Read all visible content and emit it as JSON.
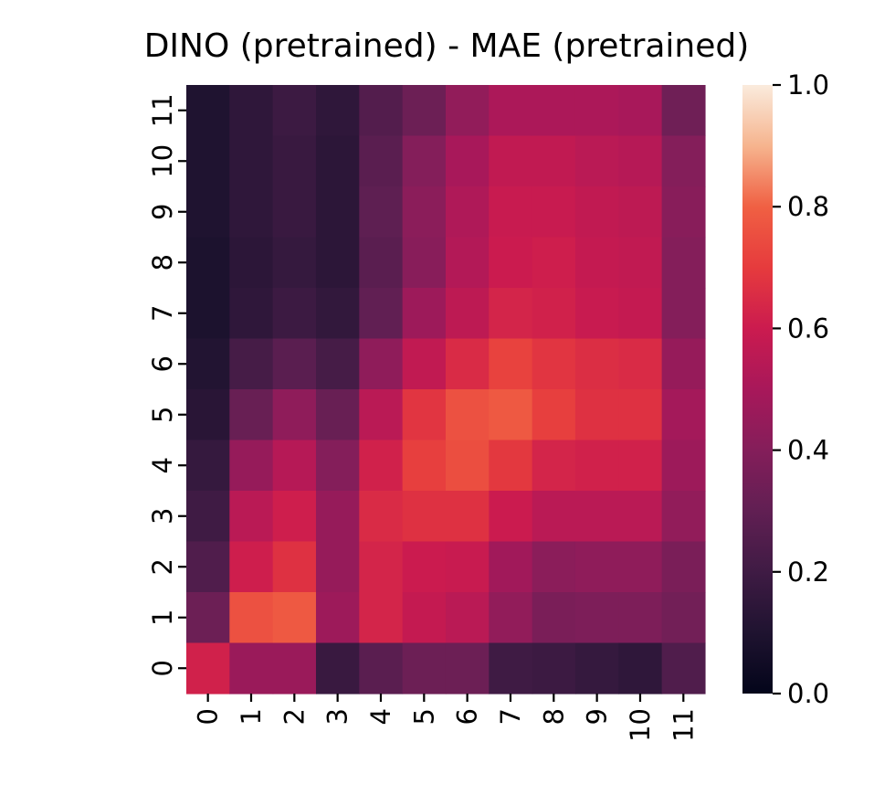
{
  "chart_data": {
    "type": "heatmap",
    "title": "DINO (pretrained) - MAE (pretrained)",
    "xlabel": "",
    "ylabel": "",
    "x_tick_labels": [
      "0",
      "1",
      "2",
      "3",
      "4",
      "5",
      "6",
      "7",
      "8",
      "9",
      "10",
      "11"
    ],
    "y_tick_labels": [
      "0",
      "1",
      "2",
      "3",
      "4",
      "5",
      "6",
      "7",
      "8",
      "9",
      "10",
      "11"
    ],
    "y_order": "bottom-to-top",
    "colormap": "rocket",
    "vmin": 0.0,
    "vmax": 1.0,
    "colorbar_ticks": [
      "0.0",
      "0.2",
      "0.4",
      "0.6",
      "0.8",
      "1.0"
    ],
    "rows": [
      {
        "y": "11",
        "values": [
          0.1,
          0.15,
          0.19,
          0.15,
          0.26,
          0.33,
          0.44,
          0.51,
          0.51,
          0.51,
          0.5,
          0.34
        ]
      },
      {
        "y": "10",
        "values": [
          0.1,
          0.15,
          0.18,
          0.14,
          0.28,
          0.4,
          0.5,
          0.57,
          0.57,
          0.55,
          0.54,
          0.4
        ]
      },
      {
        "y": "9",
        "values": [
          0.1,
          0.15,
          0.18,
          0.14,
          0.29,
          0.42,
          0.52,
          0.59,
          0.59,
          0.57,
          0.56,
          0.41
        ]
      },
      {
        "y": "8",
        "values": [
          0.09,
          0.14,
          0.17,
          0.14,
          0.28,
          0.41,
          0.53,
          0.6,
          0.61,
          0.58,
          0.57,
          0.4
        ]
      },
      {
        "y": "7",
        "values": [
          0.09,
          0.15,
          0.19,
          0.16,
          0.3,
          0.47,
          0.56,
          0.63,
          0.62,
          0.59,
          0.58,
          0.4
        ]
      },
      {
        "y": "6",
        "values": [
          0.11,
          0.22,
          0.28,
          0.22,
          0.43,
          0.57,
          0.65,
          0.72,
          0.68,
          0.66,
          0.65,
          0.45
        ]
      },
      {
        "y": "5",
        "values": [
          0.13,
          0.32,
          0.43,
          0.32,
          0.55,
          0.68,
          0.76,
          0.78,
          0.71,
          0.67,
          0.67,
          0.49
        ]
      },
      {
        "y": "4",
        "values": [
          0.17,
          0.45,
          0.54,
          0.4,
          0.62,
          0.71,
          0.75,
          0.69,
          0.63,
          0.62,
          0.62,
          0.47
        ]
      },
      {
        "y": "3",
        "values": [
          0.2,
          0.55,
          0.61,
          0.45,
          0.65,
          0.67,
          0.67,
          0.6,
          0.55,
          0.55,
          0.55,
          0.44
        ]
      },
      {
        "y": "2",
        "values": [
          0.25,
          0.61,
          0.67,
          0.45,
          0.63,
          0.6,
          0.59,
          0.48,
          0.42,
          0.43,
          0.43,
          0.37
        ]
      },
      {
        "y": "1",
        "values": [
          0.33,
          0.76,
          0.78,
          0.47,
          0.63,
          0.58,
          0.55,
          0.44,
          0.37,
          0.38,
          0.38,
          0.35
        ]
      },
      {
        "y": "0",
        "values": [
          0.62,
          0.46,
          0.46,
          0.18,
          0.28,
          0.33,
          0.33,
          0.2,
          0.19,
          0.17,
          0.15,
          0.25
        ]
      }
    ]
  }
}
